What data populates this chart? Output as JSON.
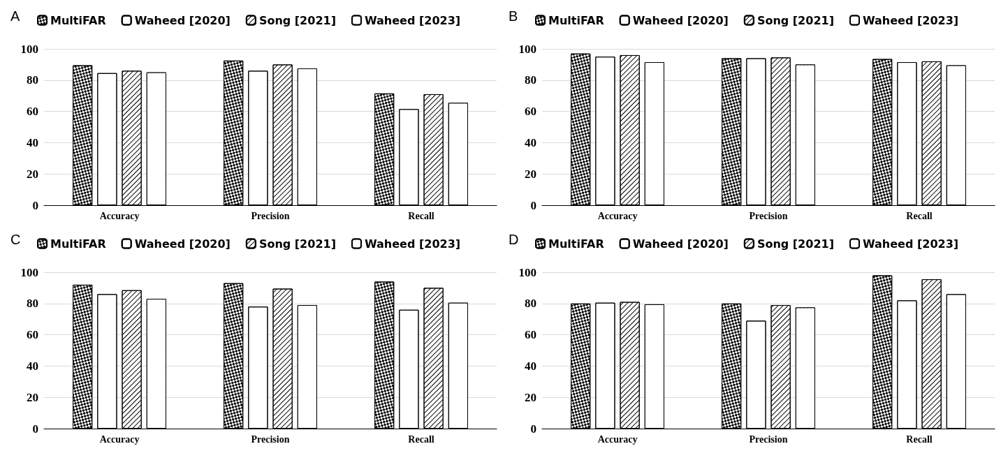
{
  "chart_data": [
    {
      "type": "bar",
      "title": "A",
      "categories": [
        "Accuracy",
        "Precision",
        "Recall"
      ],
      "series": [
        {
          "name": "MultiFAR",
          "color": "#000000",
          "values": [
            89.5,
            92.5,
            71.5
          ]
        },
        {
          "name": "Waheed [2020]",
          "color": "#000000",
          "values": [
            84.5,
            86,
            61.5
          ]
        },
        {
          "name": "Song [2021]",
          "color": "#000000",
          "values": [
            86,
            90,
            71
          ]
        },
        {
          "name": "Waheed [2023]",
          "color": "#000000",
          "values": [
            85,
            87.5,
            65.5
          ]
        }
      ],
      "ylim": [
        0,
        100
      ],
      "yticks": [
        0,
        20,
        40,
        60,
        80,
        100
      ],
      "grid": "y",
      "legend": "top"
    },
    {
      "type": "bar",
      "title": "B",
      "categories": [
        "Accuracy",
        "Precision",
        "Recall"
      ],
      "series": [
        {
          "name": "MultiFAR",
          "color": "#000000",
          "values": [
            97,
            94,
            93.5
          ]
        },
        {
          "name": "Waheed [2020]",
          "color": "#000000",
          "values": [
            95,
            94,
            91.5
          ]
        },
        {
          "name": "Song [2021]",
          "color": "#000000",
          "values": [
            96,
            94.5,
            92
          ]
        },
        {
          "name": "Waheed [2023]",
          "color": "#000000",
          "values": [
            91.5,
            90,
            89.5
          ]
        }
      ],
      "ylim": [
        0,
        100
      ],
      "yticks": [
        0,
        20,
        40,
        60,
        80,
        100
      ],
      "grid": "y",
      "legend": "top"
    },
    {
      "type": "bar",
      "title": "C",
      "categories": [
        "Accuracy",
        "Precision",
        "Recall"
      ],
      "series": [
        {
          "name": "MultiFAR",
          "color": "#000000",
          "values": [
            92,
            93,
            94
          ]
        },
        {
          "name": "Waheed [2020]",
          "color": "#000000",
          "values": [
            86,
            78,
            76
          ]
        },
        {
          "name": "Song [2021]",
          "color": "#000000",
          "values": [
            88.5,
            89.5,
            90
          ]
        },
        {
          "name": "Waheed [2023]",
          "color": "#000000",
          "values": [
            83,
            79,
            80.5
          ]
        }
      ],
      "ylim": [
        0,
        100
      ],
      "yticks": [
        0,
        20,
        40,
        60,
        80,
        100
      ],
      "grid": "y",
      "legend": "top"
    },
    {
      "type": "bar",
      "title": "D",
      "categories": [
        "Accuracy",
        "Precision",
        "Recall"
      ],
      "series": [
        {
          "name": "MultiFAR",
          "color": "#000000",
          "values": [
            80,
            80,
            98
          ]
        },
        {
          "name": "Waheed [2020]",
          "color": "#000000",
          "values": [
            80.5,
            69,
            82
          ]
        },
        {
          "name": "Song [2021]",
          "color": "#000000",
          "values": [
            81,
            79,
            95.5
          ]
        },
        {
          "name": "Waheed [2023]",
          "color": "#000000",
          "values": [
            79.5,
            77.5,
            86
          ]
        }
      ],
      "ylim": [
        0,
        100
      ],
      "yticks": [
        0,
        20,
        40,
        60,
        80,
        100
      ],
      "grid": "y",
      "legend": "top"
    }
  ]
}
